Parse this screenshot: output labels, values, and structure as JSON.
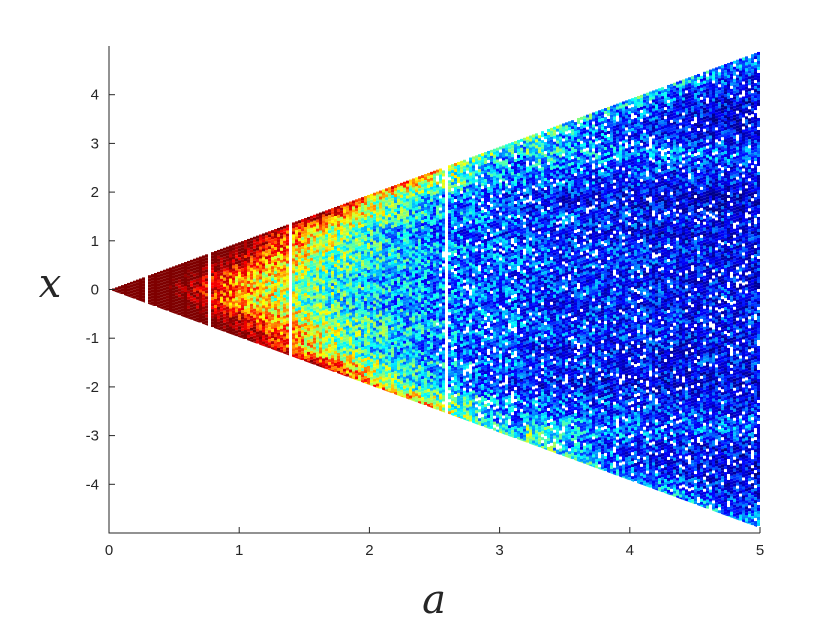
{
  "chart_data": {
    "type": "scatter",
    "title": "",
    "xlabel": "a",
    "ylabel": "x",
    "xlim": [
      0,
      5
    ],
    "ylim": [
      -5,
      5
    ],
    "x_ticks": [
      "0",
      "1",
      "2",
      "3",
      "4",
      "5"
    ],
    "y_ticks": [
      "-4",
      "-3",
      "-2",
      "-1",
      "0",
      "1",
      "2",
      "3",
      "4"
    ],
    "grid": false,
    "region": {
      "description_free": true,
      "apex": [
        0,
        0
      ],
      "upper_edge_at_a5": 4.9,
      "lower_edge_at_a5": -4.9
    },
    "colormap": "jet",
    "colormap_stops": [
      "#00007f",
      "#0000ff",
      "#00ffff",
      "#ffff00",
      "#ff0000",
      "#7f0000"
    ],
    "dense_band_rows": [
      0.0,
      0.5,
      -0.5,
      0.9,
      -0.9,
      1.5,
      -1.5,
      2.25,
      -2.25
    ],
    "gap_columns_a": [
      0.27,
      0.75,
      1.38,
      2.57
    ]
  }
}
